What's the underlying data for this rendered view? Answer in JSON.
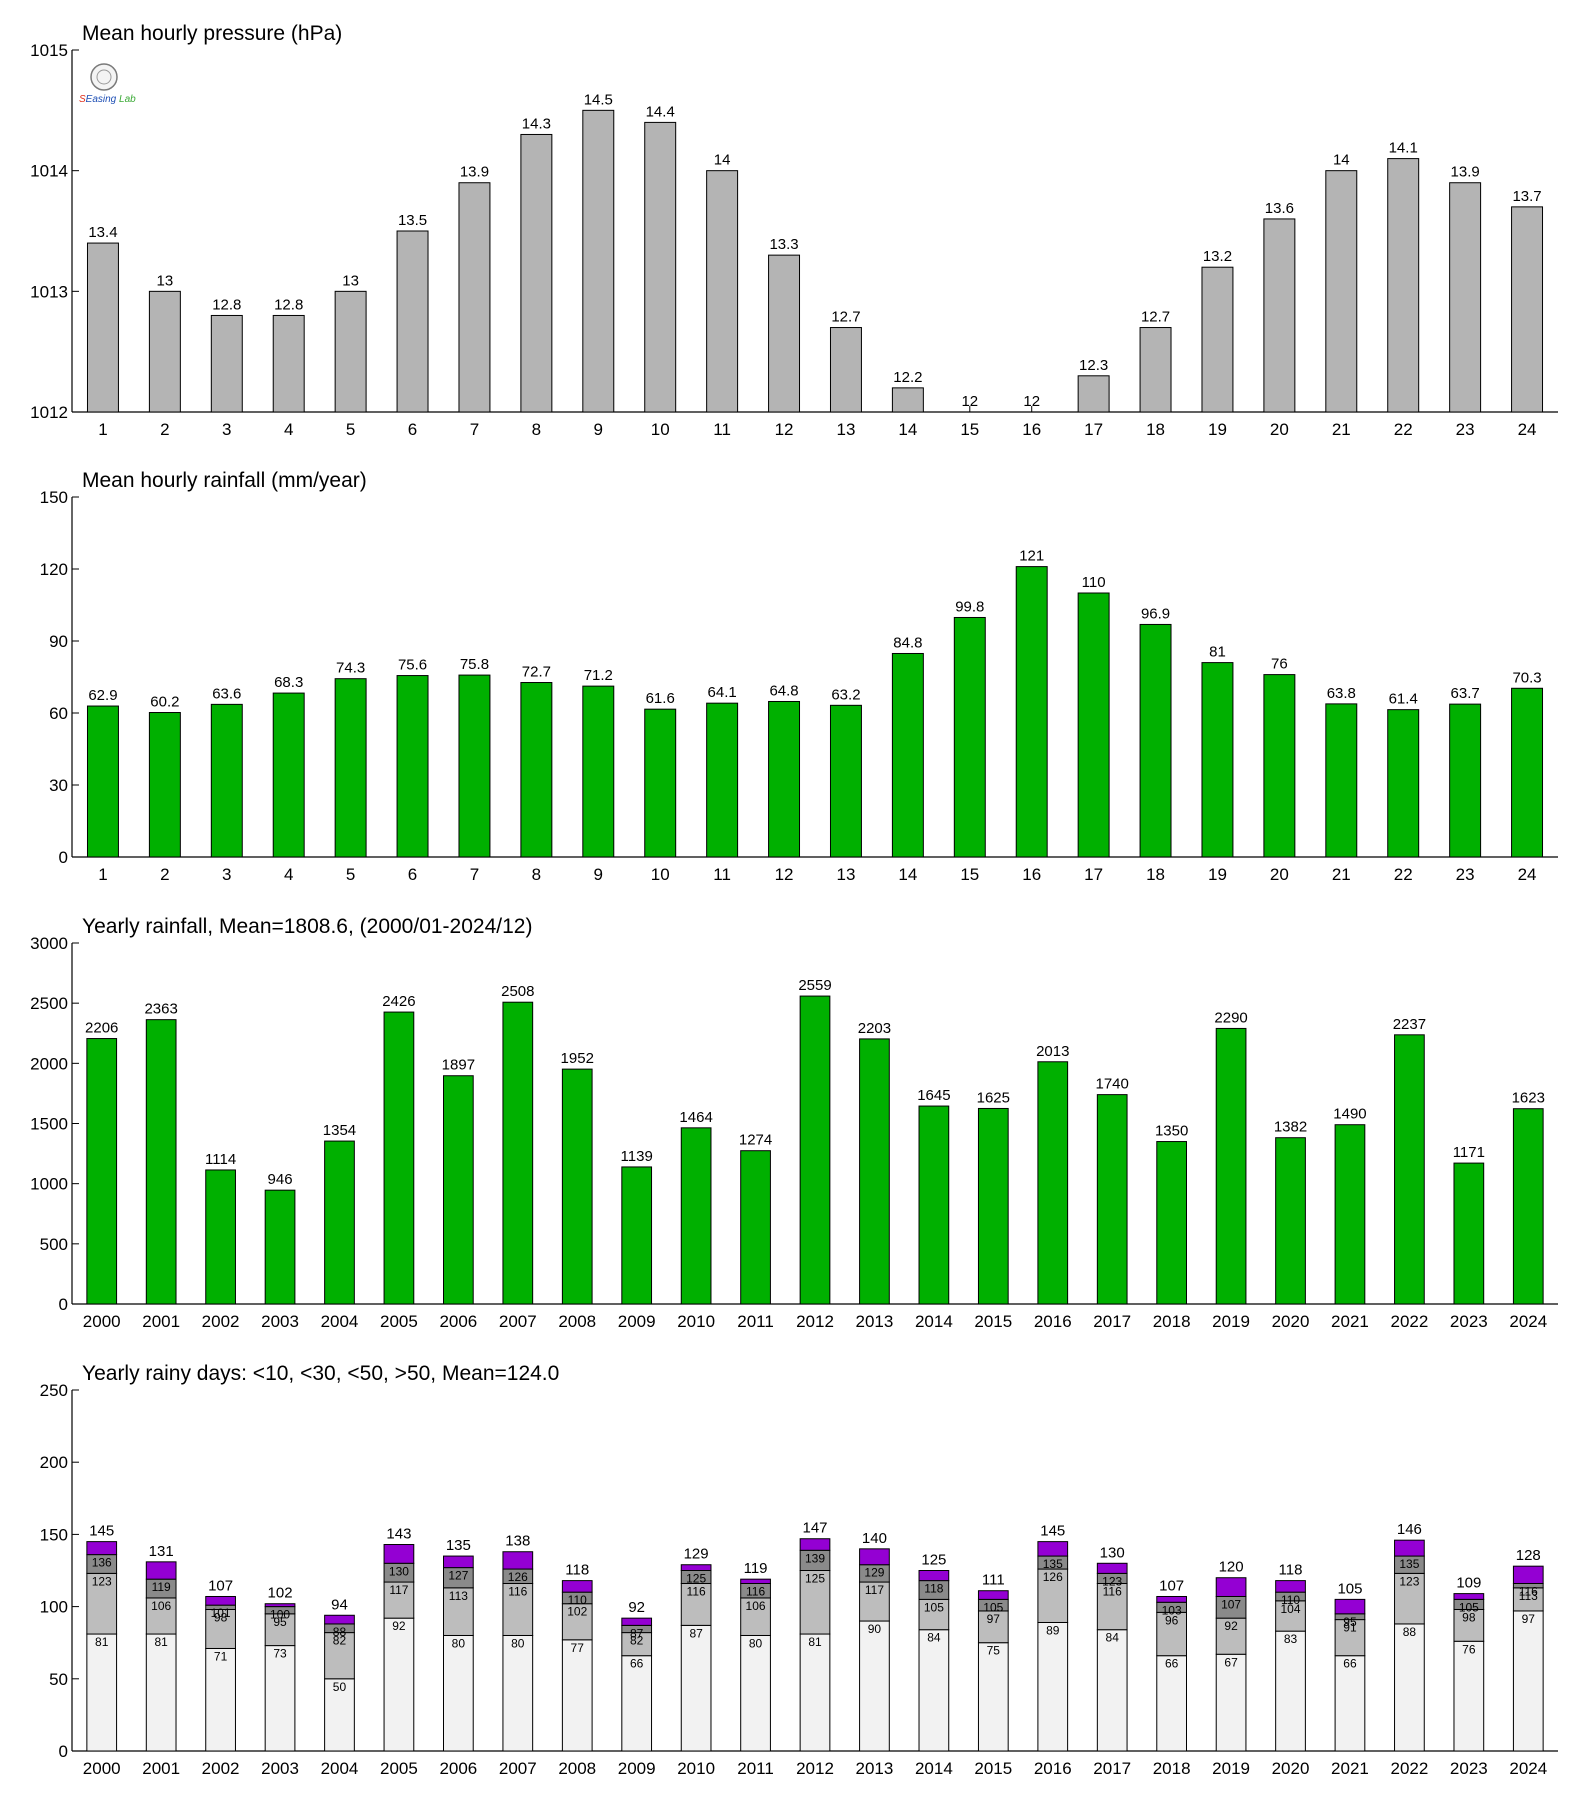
{
  "colors": {
    "pressure_bar": "#b4b4b4",
    "rain_bar": "#00b000",
    "seg_lt10": "#f2f2f2",
    "seg_lt30": "#bdbdbd",
    "seg_lt50": "#8a8a8a",
    "seg_gt50": "#9400d3",
    "logo_text1": "#e0301e",
    "logo_text2": "#1e4fb5",
    "logo_text3": "#3aa935"
  },
  "logo": {
    "icon": "seal-icon",
    "text": "SEasing Lab"
  },
  "chart_data": [
    {
      "type": "bar",
      "title": "Mean hourly pressure (hPa)",
      "categories": [
        "1",
        "2",
        "3",
        "4",
        "5",
        "6",
        "7",
        "8",
        "9",
        "10",
        "11",
        "12",
        "13",
        "14",
        "15",
        "16",
        "17",
        "18",
        "19",
        "20",
        "21",
        "22",
        "23",
        "24"
      ],
      "values": [
        1013.4,
        1013.0,
        1012.8,
        1012.8,
        1013.0,
        1013.5,
        1013.9,
        1014.3,
        1014.5,
        1014.4,
        1014.0,
        1013.3,
        1012.7,
        1012.2,
        1012.0,
        1012.0,
        1012.3,
        1012.7,
        1013.2,
        1013.6,
        1014.0,
        1014.1,
        1013.9,
        1013.7
      ],
      "labels": [
        "13.4",
        "13",
        "12.8",
        "12.8",
        "13",
        "13.5",
        "13.9",
        "14.3",
        "14.5",
        "14.4",
        "14",
        "13.3",
        "12.7",
        "12.2",
        "12",
        "12",
        "12.3",
        "12.7",
        "13.2",
        "13.6",
        "14",
        "14.1",
        "13.9",
        "13.7"
      ],
      "ylim": [
        1012,
        1015
      ],
      "yticks": [
        "1012",
        "1013",
        "1014",
        "1015"
      ],
      "grid": false
    },
    {
      "type": "bar",
      "title": "Mean hourly rainfall (mm/year)",
      "categories": [
        "1",
        "2",
        "3",
        "4",
        "5",
        "6",
        "7",
        "8",
        "9",
        "10",
        "11",
        "12",
        "13",
        "14",
        "15",
        "16",
        "17",
        "18",
        "19",
        "20",
        "21",
        "22",
        "23",
        "24"
      ],
      "values": [
        62.9,
        60.2,
        63.6,
        68.3,
        74.3,
        75.6,
        75.8,
        72.7,
        71.2,
        61.6,
        64.1,
        64.8,
        63.2,
        84.8,
        99.8,
        121,
        110,
        96.9,
        81,
        76,
        63.8,
        61.4,
        63.7,
        70.3
      ],
      "labels": [
        "62.9",
        "60.2",
        "63.6",
        "68.3",
        "74.3",
        "75.6",
        "75.8",
        "72.7",
        "71.2",
        "61.6",
        "64.1",
        "64.8",
        "63.2",
        "84.8",
        "99.8",
        "121",
        "110",
        "96.9",
        "81",
        "76",
        "63.8",
        "61.4",
        "63.7",
        "70.3"
      ],
      "ylim": [
        0,
        150
      ],
      "yticks": [
        "0",
        "30",
        "60",
        "90",
        "120",
        "150"
      ],
      "grid": false
    },
    {
      "type": "bar",
      "title": "Yearly rainfall, Mean=1808.6, (2000/01-2024/12)",
      "categories": [
        "2000",
        "2001",
        "2002",
        "2003",
        "2004",
        "2005",
        "2006",
        "2007",
        "2008",
        "2009",
        "2010",
        "2011",
        "2012",
        "2013",
        "2014",
        "2015",
        "2016",
        "2017",
        "2018",
        "2019",
        "2020",
        "2021",
        "2022",
        "2023",
        "2024"
      ],
      "values": [
        2206,
        2363,
        1114,
        946,
        1354,
        2426,
        1897,
        2508,
        1952,
        1139,
        1464,
        1274,
        2559,
        2203,
        1645,
        1625,
        2013,
        1740,
        1350,
        2290,
        1382,
        1490,
        2237,
        1171,
        1623
      ],
      "labels": [
        "2206",
        "2363",
        "1114",
        "946",
        "1354",
        "2426",
        "1897",
        "2508",
        "1952",
        "1139",
        "1464",
        "1274",
        "2559",
        "2203",
        "1645",
        "1625",
        "2013",
        "1740",
        "1350",
        "2290",
        "1382",
        "1490",
        "2237",
        "1171",
        "1623"
      ],
      "ylim": [
        0,
        3000
      ],
      "yticks": [
        "0",
        "500",
        "1000",
        "1500",
        "2000",
        "2500",
        "3000"
      ],
      "grid": false
    },
    {
      "type": "bar",
      "title": "Yearly rainy days: <10, <30, <50, >50, Mean=124.0",
      "stacked": true,
      "categories": [
        "2000",
        "2001",
        "2002",
        "2003",
        "2004",
        "2005",
        "2006",
        "2007",
        "2008",
        "2009",
        "2010",
        "2011",
        "2012",
        "2013",
        "2014",
        "2015",
        "2016",
        "2017",
        "2018",
        "2019",
        "2020",
        "2021",
        "2022",
        "2023",
        "2024"
      ],
      "cumulative": [
        [
          81,
          123,
          136,
          145
        ],
        [
          81,
          106,
          119,
          131
        ],
        [
          71,
          98,
          101,
          107
        ],
        [
          73,
          95,
          100,
          102
        ],
        [
          50,
          82,
          88,
          94
        ],
        [
          92,
          117,
          130,
          143
        ],
        [
          80,
          113,
          127,
          135
        ],
        [
          80,
          116,
          126,
          138
        ],
        [
          77,
          102,
          110,
          118
        ],
        [
          66,
          82,
          87,
          92
        ],
        [
          87,
          116,
          125,
          129
        ],
        [
          80,
          106,
          116,
          119
        ],
        [
          81,
          125,
          139,
          147
        ],
        [
          90,
          117,
          129,
          140
        ],
        [
          84,
          105,
          118,
          125
        ],
        [
          75,
          97,
          105,
          111
        ],
        [
          89,
          126,
          135,
          145
        ],
        [
          84,
          116,
          123,
          130
        ],
        [
          66,
          96,
          103,
          107
        ],
        [
          67,
          92,
          107,
          120
        ],
        [
          83,
          104,
          110,
          118
        ],
        [
          66,
          91,
          95,
          105
        ],
        [
          88,
          123,
          135,
          146
        ],
        [
          76,
          98,
          105,
          109
        ],
        [
          97,
          113,
          116,
          128
        ]
      ],
      "segment_labels": [
        [
          "81",
          "123",
          "136"
        ],
        [
          "81",
          "106",
          "119"
        ],
        [
          "71",
          "98",
          "101"
        ],
        [
          "73",
          "95",
          "100"
        ],
        [
          "50",
          "82",
          "88"
        ],
        [
          "92",
          "117",
          "130"
        ],
        [
          "80",
          "113",
          "127"
        ],
        [
          "80",
          "116",
          "126"
        ],
        [
          "77",
          "102",
          "110"
        ],
        [
          "66",
          "82",
          "87"
        ],
        [
          "87",
          "116",
          "125"
        ],
        [
          "80",
          "106",
          "116"
        ],
        [
          "81",
          "125",
          "139"
        ],
        [
          "90",
          "117",
          "129"
        ],
        [
          "84",
          "105",
          "118"
        ],
        [
          "75",
          "97",
          "105"
        ],
        [
          "89",
          "126",
          "135"
        ],
        [
          "84",
          "116",
          "123"
        ],
        [
          "66",
          "96",
          "103"
        ],
        [
          "67",
          "92",
          "107"
        ],
        [
          "83",
          "104",
          "110"
        ],
        [
          "66",
          "91",
          "95"
        ],
        [
          "88",
          "123",
          "135"
        ],
        [
          "76",
          "98",
          "105"
        ],
        [
          "97",
          "113",
          "116"
        ]
      ],
      "totals": [
        "145",
        "131",
        "107",
        "102",
        "94",
        "143",
        "135",
        "138",
        "118",
        "92",
        "129",
        "119",
        "147",
        "140",
        "125",
        "111",
        "145",
        "130",
        "107",
        "120",
        "118",
        "105",
        "146",
        "109",
        "128"
      ],
      "ylim": [
        0,
        250
      ],
      "yticks": [
        "0",
        "50",
        "100",
        "150",
        "200",
        "250"
      ],
      "grid": false
    }
  ]
}
